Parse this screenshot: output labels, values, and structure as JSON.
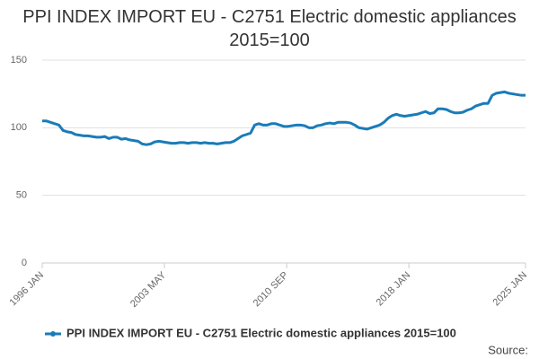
{
  "chart_data": {
    "type": "line",
    "title": "PPI INDEX IMPORT EU - C2751 Electric domestic appliances 2015=100",
    "source": "Source:",
    "x": [
      1996,
      1996.25,
      1996.5,
      1996.75,
      1997,
      1997.25,
      1997.5,
      1997.75,
      1998,
      1998.25,
      1998.5,
      1998.75,
      1999,
      1999.25,
      1999.5,
      1999.75,
      2000,
      2000.25,
      2000.5,
      2000.75,
      2001,
      2001.25,
      2001.5,
      2001.75,
      2002,
      2002.25,
      2002.5,
      2002.75,
      2003,
      2003.25,
      2003.5,
      2003.75,
      2004,
      2004.25,
      2004.5,
      2004.75,
      2005,
      2005.25,
      2005.5,
      2005.75,
      2006,
      2006.25,
      2006.5,
      2006.75,
      2007,
      2007.25,
      2007.5,
      2007.75,
      2008,
      2008.25,
      2008.5,
      2008.75,
      2009,
      2009.25,
      2009.5,
      2009.75,
      2010,
      2010.25,
      2010.5,
      2010.75,
      2011,
      2011.25,
      2011.5,
      2011.75,
      2012,
      2012.25,
      2012.5,
      2012.75,
      2013,
      2013.25,
      2013.5,
      2013.75,
      2014,
      2014.25,
      2014.5,
      2014.75,
      2015,
      2015.25,
      2015.5,
      2015.75,
      2016,
      2016.25,
      2016.5,
      2016.75,
      2017,
      2017.25,
      2017.5,
      2017.75,
      2018,
      2018.25,
      2018.5,
      2018.75,
      2019,
      2019.25,
      2019.5,
      2019.75,
      2020,
      2020.25,
      2020.5,
      2020.75,
      2021,
      2021.25,
      2021.5,
      2021.75,
      2022,
      2022.25,
      2022.5,
      2022.75,
      2023,
      2023.25,
      2023.5,
      2023.75,
      2024,
      2024.25,
      2024.5,
      2024.75,
      2025
    ],
    "series": [
      {
        "name": "PPI INDEX IMPORT EU - C2751 Electric domestic appliances 2015=100",
        "color": "#1a7bb9",
        "values": [
          105,
          105,
          104,
          103,
          102,
          98,
          97,
          96.5,
          95,
          94.5,
          94,
          94,
          93.5,
          93,
          93,
          93.5,
          92,
          93,
          93,
          91.5,
          92,
          91,
          90.5,
          90,
          88,
          87.5,
          88,
          89.5,
          90,
          89.5,
          89,
          88.5,
          88.5,
          89,
          89,
          88.5,
          89,
          89,
          88.5,
          89,
          88.5,
          88.5,
          88,
          88.5,
          89,
          89,
          90,
          92,
          94,
          95,
          96,
          102,
          103,
          102,
          102,
          103,
          103,
          102,
          101,
          101,
          101.5,
          102,
          102,
          101.5,
          100,
          100,
          101.5,
          102,
          103,
          103.5,
          103,
          104,
          104,
          104,
          103.5,
          102,
          100,
          99.5,
          99,
          100,
          101,
          102,
          104,
          107,
          109,
          110,
          109,
          108.5,
          109,
          109.5,
          110,
          111,
          112,
          110.5,
          111,
          114,
          114,
          113.5,
          112,
          111,
          111,
          111.5,
          113,
          114,
          116,
          117,
          118,
          118,
          124,
          125.5,
          126,
          126.5,
          125.5,
          125,
          124.5,
          124,
          124
        ]
      }
    ],
    "xlim": [
      1996,
      2025
    ],
    "xticks": [
      {
        "value": 1996,
        "label": "1996 JAN"
      },
      {
        "value": 2003.333,
        "label": "2003 MAY"
      },
      {
        "value": 2010.667,
        "label": "2010 SEP"
      },
      {
        "value": 2018,
        "label": "2018 JAN"
      },
      {
        "value": 2025,
        "label": "2025 JAN"
      }
    ],
    "ylim": [
      0,
      150
    ],
    "yticks": [
      0,
      50,
      100,
      150
    ],
    "grid": true
  }
}
